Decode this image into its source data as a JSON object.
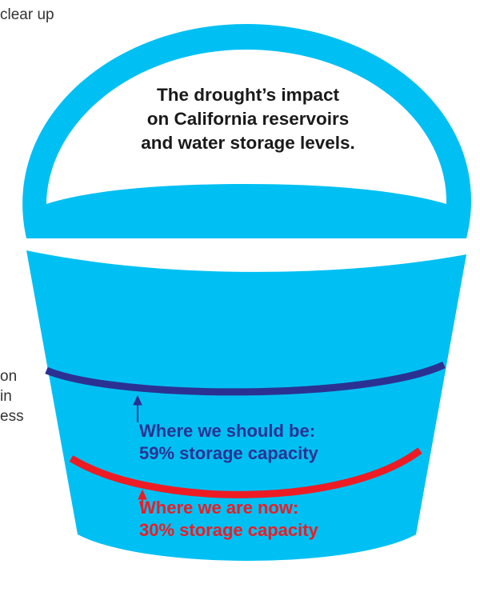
{
  "side_text": {
    "top_lines": [
      "clear up"
    ],
    "middle_lines": [
      "on",
      "in",
      "ess"
    ]
  },
  "headline": {
    "lines": [
      "The drought’s impact",
      "on California reservoirs",
      "and water storage levels."
    ]
  },
  "levels": {
    "should_be": {
      "line1": "Where we should be:",
      "line2": "59% storage capacity",
      "capacity_percent": 59,
      "color": "#2b3192"
    },
    "now": {
      "line1": "Where we are now:",
      "line2": "30% storage capacity",
      "capacity_percent": 30,
      "color": "#ed1c24"
    }
  },
  "colors": {
    "bucket": "#00c0f3",
    "background": "#ffffff"
  }
}
